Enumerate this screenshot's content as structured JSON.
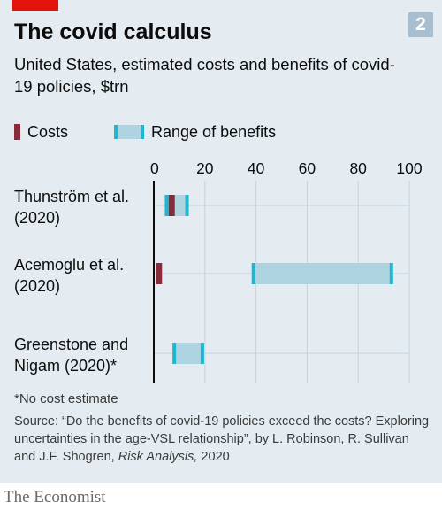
{
  "chart_number": "2",
  "title": "The covid calculus",
  "subtitle": "United States, estimated costs and benefits of covid-19 policies, $trn",
  "legend": {
    "costs_label": "Costs",
    "range_label": "Range of benefits"
  },
  "colors": {
    "costs": "#8a2b3b",
    "range_fill": "#aed4e2",
    "range_edge": "#1fb7cf",
    "brand_red": "#e3120b",
    "background": "#e4ecf1"
  },
  "footnote": "*No cost estimate",
  "source_prefix": "Source: “Do the benefits of covid-19 policies exceed the costs? Exploring uncertainties in the age-VSL relationship”, by L. Robinson, R. Sullivan and J.F. Shogren, ",
  "source_journal": "Risk Analysis,",
  "source_year": " 2020",
  "publisher": "The Economist",
  "chart_data": {
    "type": "bar",
    "title": "The covid calculus",
    "subtitle": "United States, estimated costs and benefits of covid-19 policies, $trn",
    "xlim": [
      0,
      100
    ],
    "xticks": [
      0,
      20,
      40,
      60,
      80,
      100
    ],
    "grid": true,
    "legend_position": "top-left",
    "categories": [
      {
        "label_lines": [
          "Thunström et al.",
          "(2020)"
        ],
        "cost": 7,
        "benefit_min": 5,
        "benefit_max": 13
      },
      {
        "label_lines": [
          "Acemoglu et al.",
          "(2020)"
        ],
        "cost": 2,
        "benefit_min": 39,
        "benefit_max": 93
      },
      {
        "label_lines": [
          "Greenstone and",
          "Nigam (2020)*"
        ],
        "cost": null,
        "benefit_min": 8,
        "benefit_max": 19
      }
    ]
  }
}
